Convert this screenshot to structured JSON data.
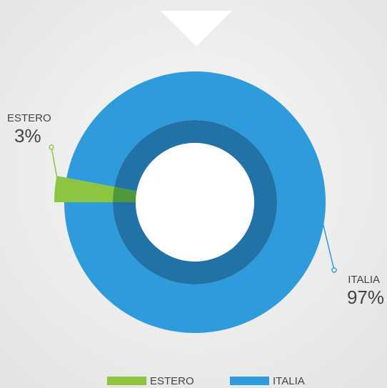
{
  "chart_data": {
    "type": "donut",
    "categories": [
      "ESTERO",
      "ITALIA"
    ],
    "values": [
      3,
      97
    ],
    "value_labels": [
      "3%",
      "97%"
    ],
    "colors": [
      "#8cc63f",
      "#2e9bdb"
    ],
    "inner_colors": [
      "#4e9a3a",
      "#2272a8"
    ],
    "legend": "bottom"
  }
}
